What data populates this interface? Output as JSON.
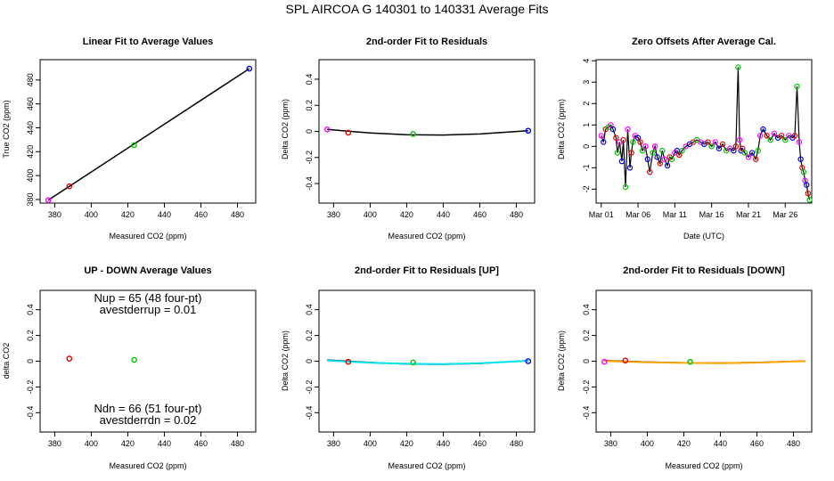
{
  "main_title": "SPL   AIRCOA G   140301 to 140331   Average Fits",
  "colors": {
    "red": "#e00000",
    "green": "#00c000",
    "blue": "#0000dd",
    "magenta": "#ff00ff",
    "cyan": "#00e5ee",
    "orange": "#ffa500",
    "black": "#000000"
  },
  "chart_data": [
    {
      "type": "scatter",
      "title": "Linear Fit to Average Values",
      "xlabel": "Measured CO2 (ppm)",
      "ylabel": "True CO2 (ppm)",
      "xlim": [
        372,
        490
      ],
      "ylim": [
        377,
        497
      ],
      "xticks": [
        380,
        400,
        420,
        440,
        460,
        480
      ],
      "yticks": [
        380,
        400,
        420,
        440,
        460,
        480
      ],
      "points": [
        {
          "x": 376.5,
          "y": 379.5,
          "color": "magenta"
        },
        {
          "x": 388,
          "y": 391,
          "color": "red"
        },
        {
          "x": 423.5,
          "y": 425.5,
          "color": "green"
        },
        {
          "x": 486.5,
          "y": 489.5,
          "color": "blue"
        }
      ],
      "line": [
        [
          376.5,
          379.5
        ],
        [
          486.5,
          489.5
        ]
      ]
    },
    {
      "type": "scatter",
      "title": "2nd-order Fit to Residuals",
      "xlabel": "Measured CO2 (ppm)",
      "ylabel": "Delta CO2 (ppm)",
      "xlim": [
        372,
        490
      ],
      "ylim": [
        -0.55,
        0.55
      ],
      "xticks": [
        380,
        400,
        420,
        440,
        460,
        480
      ],
      "yticks": [
        -0.4,
        -0.2,
        0.0,
        0.2,
        0.4
      ],
      "points": [
        {
          "x": 376.5,
          "y": 0.015,
          "color": "magenta"
        },
        {
          "x": 388,
          "y": -0.01,
          "color": "red"
        },
        {
          "x": 423.5,
          "y": -0.02,
          "color": "green"
        },
        {
          "x": 486.5,
          "y": 0.005,
          "color": "blue"
        }
      ],
      "curve": [
        [
          376.5,
          0.015
        ],
        [
          400,
          -0.012
        ],
        [
          420,
          -0.025
        ],
        [
          440,
          -0.028
        ],
        [
          460,
          -0.02
        ],
        [
          486.5,
          0.005
        ]
      ]
    },
    {
      "type": "line",
      "title": "Zero Offsets After Average Cal.",
      "xlabel": "Date (UTC)",
      "ylabel": "Delta CO2 (ppm)",
      "xlim": [
        0.3,
        29.6
      ],
      "ylim": [
        -2.65,
        4.05
      ],
      "xticks": [
        {
          "v": 1,
          "label": "Mar 01"
        },
        {
          "v": 6,
          "label": "Mar 06"
        },
        {
          "v": 11,
          "label": "Mar 11"
        },
        {
          "v": 16,
          "label": "Mar 16"
        },
        {
          "v": 21,
          "label": "Mar 21"
        },
        {
          "v": 26,
          "label": "Mar 26"
        }
      ],
      "yticks": [
        -2,
        -1,
        0,
        1,
        2,
        3,
        4
      ],
      "series": [
        {
          "name": "offset",
          "x": [
            1,
            1.3,
            1.6,
            2,
            2.3,
            2.6,
            3,
            3.2,
            3.5,
            3.8,
            4,
            4.3,
            4.6,
            4.9,
            5.1,
            5.3,
            5.6,
            6,
            6.3,
            6.6,
            7,
            7.3,
            7.6,
            8,
            8.3,
            8.6,
            9,
            9.3,
            9.6,
            10,
            10.3,
            10.6,
            11,
            11.3,
            11.6,
            12,
            12.5,
            13,
            13.5,
            14,
            14.5,
            15,
            15.5,
            16,
            16.5,
            17,
            17.5,
            18,
            18.5,
            19,
            19.3,
            19.6,
            19.8,
            20,
            20.2,
            20.5,
            21,
            21.5,
            22,
            22.3,
            22.6,
            23,
            23.5,
            24,
            24.5,
            25,
            25.5,
            26,
            26.5,
            27,
            27.3,
            27.6,
            27.9,
            28.1,
            28.3,
            28.5,
            28.7,
            28.9,
            29.1,
            29.3
          ],
          "y": [
            0.5,
            0.2,
            0.8,
            0.9,
            1.0,
            0.8,
            0.4,
            -0.3,
            0.2,
            -0.7,
            0.3,
            -1.9,
            0.8,
            -1.0,
            -0.3,
            0.2,
            0.5,
            0.4,
            0.2,
            -0.2,
            0.0,
            -0.6,
            -1.2,
            -0.3,
            0.0,
            -0.5,
            -0.8,
            -0.2,
            -0.6,
            -0.9,
            -0.5,
            -0.6,
            -0.3,
            -0.2,
            -0.4,
            -0.2,
            0.0,
            0.1,
            0.2,
            0.3,
            0.2,
            0.1,
            0.2,
            0.0,
            0.2,
            -0.1,
            0.1,
            -0.2,
            -0.1,
            -0.2,
            0.0,
            3.7,
            0.3,
            -0.2,
            -0.1,
            -0.3,
            -0.5,
            -0.3,
            -0.6,
            -0.2,
            0.5,
            0.8,
            0.5,
            0.3,
            0.6,
            0.4,
            0.5,
            0.3,
            0.5,
            0.4,
            0.5,
            2.8,
            0.2,
            -0.6,
            -1.0,
            -1.2,
            -1.6,
            -1.8,
            -2.2,
            -2.5
          ]
        }
      ]
    },
    {
      "type": "scatter",
      "title": "UP - DOWN Average Values",
      "xlabel": "Measured CO2 (ppm)",
      "ylabel": "delta CO2",
      "xlim": [
        372,
        490
      ],
      "ylim": [
        -0.55,
        0.55
      ],
      "xticks": [
        380,
        400,
        420,
        440,
        460,
        480
      ],
      "yticks": [
        -0.4,
        -0.2,
        0.0,
        0.2,
        0.4
      ],
      "points": [
        {
          "x": 388,
          "y": 0.02,
          "color": "red"
        },
        {
          "x": 423.5,
          "y": 0.01,
          "color": "green"
        }
      ],
      "annotations": {
        "nup": "Nup = 65 (48 four-pt)",
        "avestderrup": "avestderrup =  0.01",
        "ndn": "Ndn = 66 (51 four-pt)",
        "avestderrdn": "avestderrdn =  0.02"
      }
    },
    {
      "type": "scatter",
      "title": "2nd-order Fit to Residuals [UP]",
      "xlabel": "Measured CO2 (ppm)",
      "ylabel": "Delta CO2 (ppm)",
      "xlim": [
        372,
        490
      ],
      "ylim": [
        -0.55,
        0.55
      ],
      "xticks": [
        380,
        400,
        420,
        440,
        460,
        480
      ],
      "yticks": [
        -0.4,
        -0.2,
        0.0,
        0.2,
        0.4
      ],
      "points": [
        {
          "x": 388,
          "y": -0.005,
          "color": "red"
        },
        {
          "x": 423.5,
          "y": -0.01,
          "color": "green"
        },
        {
          "x": 486.5,
          "y": 0.0,
          "color": "blue"
        }
      ],
      "curve": [
        [
          376.5,
          0.01
        ],
        [
          400,
          -0.01
        ],
        [
          420,
          -0.022
        ],
        [
          440,
          -0.024
        ],
        [
          460,
          -0.018
        ],
        [
          486.5,
          0.005
        ]
      ],
      "curve2": [
        [
          376.5,
          0.005
        ],
        [
          400,
          -0.012
        ],
        [
          420,
          -0.02
        ],
        [
          440,
          -0.022
        ],
        [
          460,
          -0.015
        ],
        [
          486.5,
          0.003
        ]
      ],
      "curve2_color": "cyan"
    },
    {
      "type": "scatter",
      "title": "2nd-order Fit to Residuals [DOWN]",
      "xlabel": "Measured CO2 (ppm)",
      "ylabel": "Delta CO2 (ppm)",
      "xlim": [
        372,
        490
      ],
      "ylim": [
        -0.55,
        0.55
      ],
      "xticks": [
        380,
        400,
        420,
        440,
        460,
        480
      ],
      "yticks": [
        -0.4,
        -0.2,
        0.0,
        0.2,
        0.4
      ],
      "points": [
        {
          "x": 376.5,
          "y": -0.005,
          "color": "magenta"
        },
        {
          "x": 388,
          "y": 0.005,
          "color": "red"
        },
        {
          "x": 423.5,
          "y": -0.005,
          "color": "green"
        }
      ],
      "curve": [
        [
          376.5,
          0.005
        ],
        [
          400,
          -0.006
        ],
        [
          420,
          -0.012
        ],
        [
          440,
          -0.014
        ],
        [
          460,
          -0.01
        ],
        [
          486.5,
          0.002
        ]
      ],
      "curve2": [
        [
          376.5,
          0.002
        ],
        [
          400,
          -0.008
        ],
        [
          420,
          -0.013
        ],
        [
          440,
          -0.015
        ],
        [
          460,
          -0.011
        ],
        [
          486.5,
          0.0
        ]
      ],
      "curve2_color": "orange"
    }
  ]
}
